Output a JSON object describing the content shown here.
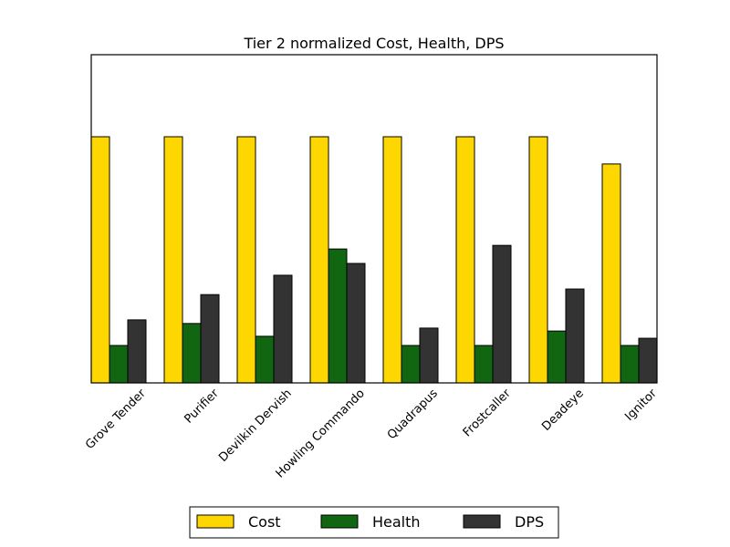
{
  "chart_data": {
    "type": "bar",
    "title": "Tier 2 normalized Cost, Health, DPS",
    "xlabel": "",
    "ylabel": "",
    "ylim": [
      0,
      1.0
    ],
    "grid": false,
    "legend_position": "bottom-center",
    "categories": [
      "Grove Tender",
      "Purifier",
      "Devilkin Dervish",
      "Howling Commando",
      "Quadrapus",
      "Frostcaller",
      "Deadeye",
      "Ignitor"
    ],
    "series": [
      {
        "name": "Cost",
        "color": "#ffd700",
        "values": [
          0.75,
          0.75,
          0.75,
          0.75,
          0.75,
          0.75,
          0.75,
          0.667
        ]
      },
      {
        "name": "Health",
        "color": "#116611",
        "values": [
          0.114,
          0.181,
          0.142,
          0.408,
          0.114,
          0.114,
          0.158,
          0.114
        ]
      },
      {
        "name": "DPS",
        "color": "#333333",
        "values": [
          0.192,
          0.269,
          0.328,
          0.364,
          0.167,
          0.419,
          0.286,
          0.136
        ]
      }
    ]
  }
}
